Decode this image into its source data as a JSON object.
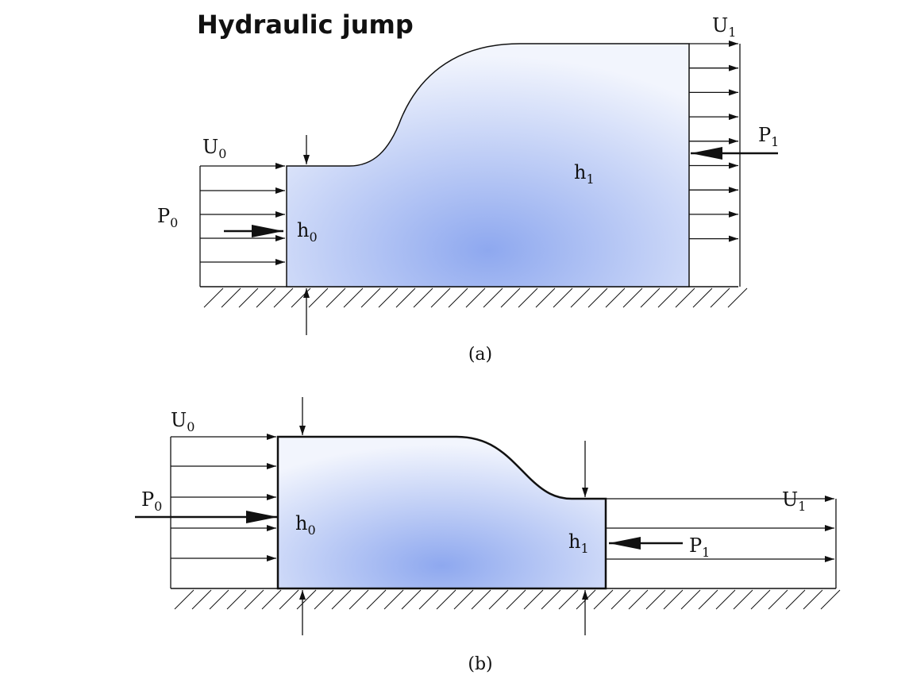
{
  "header": {
    "title": "Hydraulic jump"
  },
  "panels": [
    {
      "caption": "(a)",
      "labels": [
        {
          "base": "U",
          "sub": "0"
        },
        {
          "base": "P",
          "sub": "0"
        },
        {
          "base": "h",
          "sub": "0"
        },
        {
          "base": "h",
          "sub": "1"
        },
        {
          "base": "U",
          "sub": "1"
        },
        {
          "base": "P",
          "sub": "1"
        }
      ]
    },
    {
      "caption": "(b)",
      "labels": [
        {
          "base": "U",
          "sub": "0"
        },
        {
          "base": "P",
          "sub": "0"
        },
        {
          "base": "h",
          "sub": "0"
        },
        {
          "base": "h",
          "sub": "1"
        },
        {
          "base": "U",
          "sub": "1"
        },
        {
          "base": "P",
          "sub": "1"
        }
      ]
    }
  ]
}
